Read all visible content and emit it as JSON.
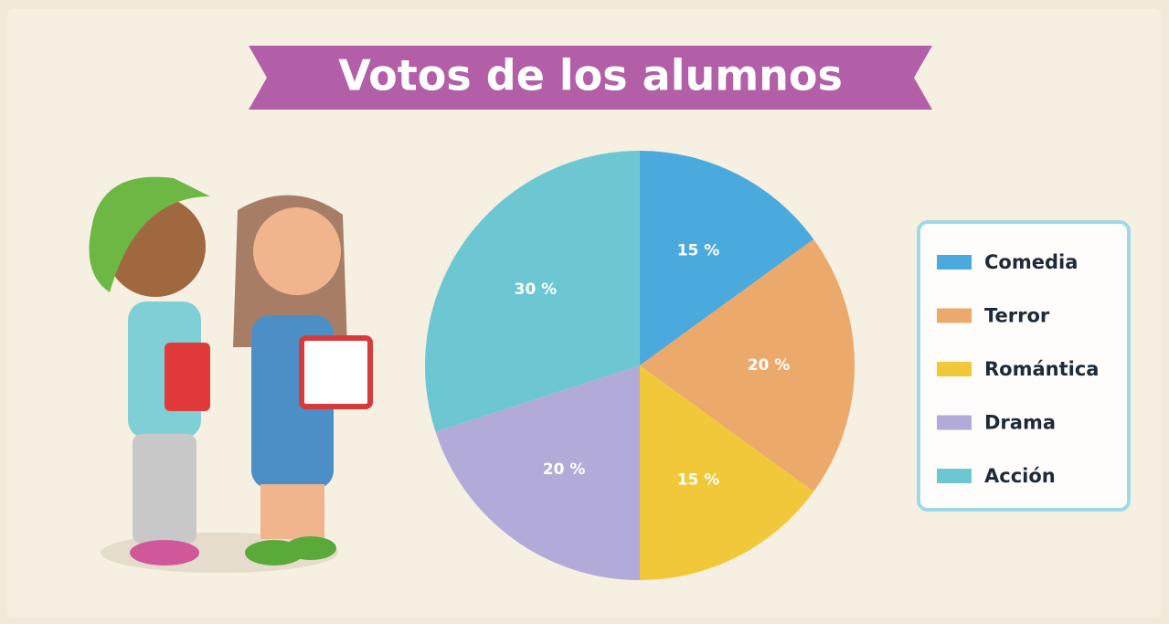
{
  "chart_data": {
    "type": "pie",
    "title": "Votos de los alumnos",
    "categories": [
      "Comedia",
      "Terror",
      "Romántica",
      "Drama",
      "Acción"
    ],
    "values": [
      15,
      20,
      15,
      20,
      30
    ],
    "value_labels": [
      "15 %",
      "20 %",
      "15 %",
      "20 %",
      "30 %"
    ],
    "colors": [
      "#4aa9dd",
      "#eca96c",
      "#f0c83a",
      "#b2aad8",
      "#6dc7d3"
    ],
    "legend": "right"
  }
}
